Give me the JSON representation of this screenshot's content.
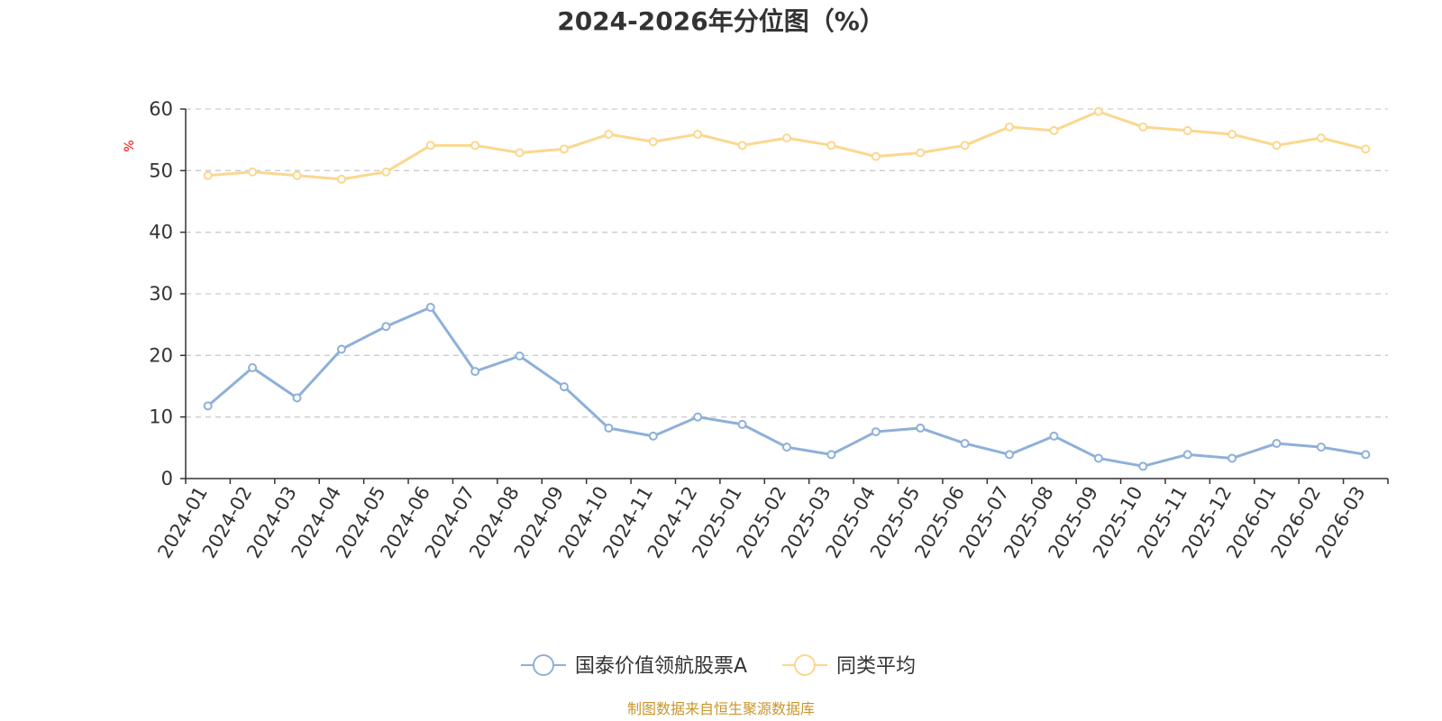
{
  "chart_data": {
    "type": "line",
    "title": "2024-2026年分位图（%）",
    "xlabel": "",
    "ylabel": "%",
    "ylim": [
      0,
      60
    ],
    "yticks": [
      0,
      10,
      20,
      30,
      40,
      50,
      60
    ],
    "grid": true,
    "legend_position": "bottom",
    "categories": [
      "2024-01",
      "2024-02",
      "2024-03",
      "2024-04",
      "2024-05",
      "2024-06",
      "2024-07",
      "2024-08",
      "2024-09",
      "2024-10",
      "2024-11",
      "2024-12",
      "2025-01",
      "2025-02",
      "2025-03",
      "2025-04",
      "2025-05",
      "2025-06",
      "2025-07",
      "2025-08",
      "2025-09",
      "2025-10",
      "2025-11",
      "2025-12",
      "2026-01",
      "2026-02",
      "2026-03"
    ],
    "series": [
      {
        "name": "国泰价值领航股票A",
        "color": "#8eb0d9",
        "values": [
          11.8,
          18.0,
          13.1,
          21.0,
          24.7,
          27.8,
          17.4,
          19.9,
          14.9,
          8.2,
          6.9,
          10.0,
          8.8,
          5.1,
          3.9,
          7.6,
          8.2,
          5.7,
          3.9,
          6.9,
          3.3,
          2.0,
          3.9,
          3.3,
          5.7,
          5.1,
          3.9
        ]
      },
      {
        "name": "同类平均",
        "color": "#fbd78f",
        "values": [
          49.2,
          49.8,
          49.2,
          48.6,
          49.8,
          54.1,
          54.1,
          52.9,
          53.5,
          55.9,
          54.7,
          55.9,
          54.1,
          55.3,
          54.1,
          52.3,
          52.9,
          54.1,
          57.1,
          56.5,
          59.6,
          57.1,
          56.5,
          55.9,
          54.1,
          55.3,
          53.5
        ]
      }
    ],
    "source": "制图数据来自恒生聚源数据库",
    "source_color": "#c9962c",
    "ylabel_color": "#ff0000"
  }
}
